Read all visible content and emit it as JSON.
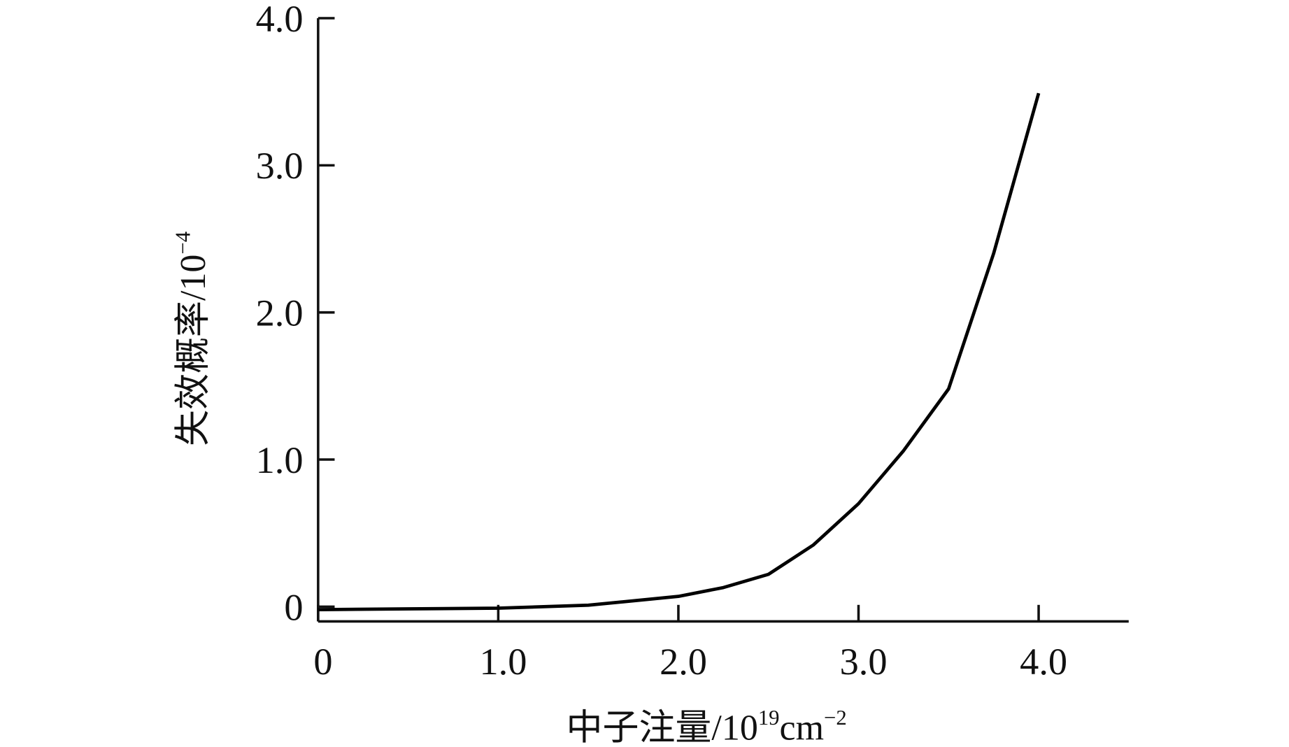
{
  "chart_data": {
    "type": "line",
    "xlabel": {
      "text": "中子注量/10",
      "sup1": "19",
      "unit": "cm",
      "sup2": "−2"
    },
    "ylabel": {
      "text": "失效概率/10",
      "sup": "−4"
    },
    "x": [
      0,
      0.5,
      1.0,
      1.5,
      2.0,
      2.25,
      2.5,
      2.75,
      3.0,
      3.25,
      3.5,
      3.75,
      4.0
    ],
    "series": [
      {
        "name": "",
        "color": "#000000",
        "values": [
          -0.02,
          -0.015,
          -0.01,
          0.01,
          0.07,
          0.13,
          0.22,
          0.42,
          0.7,
          1.06,
          1.48,
          2.4,
          3.49
        ]
      }
    ],
    "xlim": [
      0,
      4.5
    ],
    "ylim": [
      -0.1,
      4.0
    ],
    "xticks": [
      0,
      {
        "value": 1,
        "label": "1.0"
      },
      {
        "value": 2,
        "label": "2.0"
      },
      {
        "value": 3,
        "label": "3.0"
      },
      {
        "value": 4,
        "label": "4.0"
      }
    ],
    "yticks": [
      0,
      {
        "value": 1,
        "label": "1.0"
      },
      {
        "value": 2,
        "label": "2.0"
      },
      {
        "value": 3,
        "label": "3.0"
      },
      {
        "value": 4,
        "label": "4.0"
      }
    ]
  }
}
